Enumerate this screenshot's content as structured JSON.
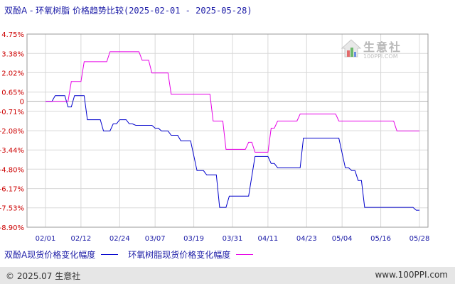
{
  "title": {
    "main": "双酚A - 环氧树脂 价格趋势比较",
    "range": "(2025-02-01 - 2025-05-28)"
  },
  "watermark": {
    "text": "生意社",
    "sub": "100PPI.COM"
  },
  "legend": {
    "series1": "双酚A现货价格变化幅度",
    "series2": "环氧树脂现货价格变化幅度"
  },
  "footer": {
    "copyright": "© 2025.07 生意社",
    "url": "www.100PPI.com"
  },
  "colors": {
    "series1": "#0000cc",
    "series2": "#e600e6",
    "axis": "#9a9a9a",
    "grid": "#d8d8d8",
    "tick_label_y": "#cc0000",
    "tick_label_x": "#1a1aa6"
  },
  "chart_data": {
    "type": "line",
    "title": "双酚A - 环氧树脂 价格趋势比较(2025-02-01 - 2025-05-28)",
    "xlabel": "",
    "ylabel": "",
    "x_tick_labels": [
      "02/01",
      "02/12",
      "02/24",
      "03/07",
      "03/19",
      "03/31",
      "04/11",
      "04/23",
      "05/04",
      "05/16",
      "05/28"
    ],
    "x_tick_dates": [
      "2025-02-01",
      "2025-02-12",
      "2025-02-24",
      "2025-03-07",
      "2025-03-19",
      "2025-03-31",
      "2025-04-11",
      "2025-04-23",
      "2025-05-04",
      "2025-05-16",
      "2025-05-28"
    ],
    "y_tick_labels": [
      "4.75%",
      "3.38%",
      "2.02%",
      "0.65%",
      "0",
      "-0.71%",
      "-2.08%",
      "-3.44%",
      "-4.80%",
      "-6.17%",
      "-7.53%",
      "-8.90%"
    ],
    "y_tick_values": [
      4.75,
      3.38,
      2.02,
      0.65,
      0,
      -0.71,
      -2.08,
      -3.44,
      -4.8,
      -6.17,
      -7.53,
      -8.9
    ],
    "ylim": [
      -8.9,
      4.75
    ],
    "xlim": [
      "2025-02-01",
      "2025-05-28"
    ],
    "grid": true,
    "legend_position": "bottom",
    "series": [
      {
        "name": "双酚A现货价格变化幅度",
        "color": "#0000cc",
        "points": [
          [
            "2025-02-01",
            0.0
          ],
          [
            "2025-02-03",
            0.0
          ],
          [
            "2025-02-04",
            0.4
          ],
          [
            "2025-02-07",
            0.4
          ],
          [
            "2025-02-08",
            -0.4
          ],
          [
            "2025-02-09",
            -0.4
          ],
          [
            "2025-02-10",
            0.4
          ],
          [
            "2025-02-13",
            0.4
          ],
          [
            "2025-02-14",
            -1.3
          ],
          [
            "2025-02-18",
            -1.3
          ],
          [
            "2025-02-19",
            -2.1
          ],
          [
            "2025-02-21",
            -2.1
          ],
          [
            "2025-02-22",
            -1.6
          ],
          [
            "2025-02-23",
            -1.6
          ],
          [
            "2025-02-24",
            -1.3
          ],
          [
            "2025-02-26",
            -1.3
          ],
          [
            "2025-02-27",
            -1.6
          ],
          [
            "2025-02-28",
            -1.6
          ],
          [
            "2025-03-01",
            -1.7
          ],
          [
            "2025-03-06",
            -1.7
          ],
          [
            "2025-03-07",
            -1.9
          ],
          [
            "2025-03-08",
            -1.9
          ],
          [
            "2025-03-09",
            -2.1
          ],
          [
            "2025-03-11",
            -2.1
          ],
          [
            "2025-03-12",
            -2.4
          ],
          [
            "2025-03-14",
            -2.4
          ],
          [
            "2025-03-15",
            -2.8
          ],
          [
            "2025-03-18",
            -2.8
          ],
          [
            "2025-03-20",
            -4.9
          ],
          [
            "2025-03-22",
            -4.9
          ],
          [
            "2025-03-23",
            -5.2
          ],
          [
            "2025-03-26",
            -5.2
          ],
          [
            "2025-03-27",
            -7.5
          ],
          [
            "2025-03-29",
            -7.5
          ],
          [
            "2025-03-30",
            -6.7
          ],
          [
            "2025-04-05",
            -6.7
          ],
          [
            "2025-04-07",
            -3.9
          ],
          [
            "2025-04-11",
            -3.9
          ],
          [
            "2025-04-12",
            -4.4
          ],
          [
            "2025-04-13",
            -4.4
          ],
          [
            "2025-04-14",
            -4.7
          ],
          [
            "2025-04-21",
            -4.7
          ],
          [
            "2025-04-22",
            -2.6
          ],
          [
            "2025-05-03",
            -2.6
          ],
          [
            "2025-05-05",
            -4.7
          ],
          [
            "2025-05-06",
            -4.7
          ],
          [
            "2025-05-07",
            -4.9
          ],
          [
            "2025-05-08",
            -4.9
          ],
          [
            "2025-05-09",
            -5.6
          ],
          [
            "2025-05-10",
            -5.6
          ],
          [
            "2025-05-11",
            -7.5
          ],
          [
            "2025-05-26",
            -7.5
          ],
          [
            "2025-05-27",
            -7.7
          ],
          [
            "2025-05-28",
            -7.7
          ]
        ]
      },
      {
        "name": "环氧树脂现货价格变化幅度",
        "color": "#e600e6",
        "points": [
          [
            "2025-02-01",
            0.0
          ],
          [
            "2025-02-08",
            0.0
          ],
          [
            "2025-02-09",
            1.4
          ],
          [
            "2025-02-12",
            1.4
          ],
          [
            "2025-02-13",
            2.8
          ],
          [
            "2025-02-20",
            2.8
          ],
          [
            "2025-02-21",
            3.5
          ],
          [
            "2025-03-02",
            3.5
          ],
          [
            "2025-03-03",
            2.9
          ],
          [
            "2025-03-05",
            2.9
          ],
          [
            "2025-03-06",
            2.0
          ],
          [
            "2025-03-11",
            2.0
          ],
          [
            "2025-03-12",
            0.5
          ],
          [
            "2025-03-24",
            0.5
          ],
          [
            "2025-03-25",
            -1.4
          ],
          [
            "2025-03-28",
            -1.4
          ],
          [
            "2025-03-29",
            -3.4
          ],
          [
            "2025-04-04",
            -3.4
          ],
          [
            "2025-04-05",
            -2.9
          ],
          [
            "2025-04-06",
            -2.9
          ],
          [
            "2025-04-07",
            -3.6
          ],
          [
            "2025-04-11",
            -3.6
          ],
          [
            "2025-04-12",
            -1.9
          ],
          [
            "2025-04-13",
            -1.9
          ],
          [
            "2025-04-14",
            -1.4
          ],
          [
            "2025-04-20",
            -1.4
          ],
          [
            "2025-04-21",
            -0.9
          ],
          [
            "2025-05-02",
            -0.9
          ],
          [
            "2025-05-03",
            -1.4
          ],
          [
            "2025-05-20",
            -1.4
          ],
          [
            "2025-05-21",
            -2.1
          ],
          [
            "2025-05-28",
            -2.1
          ]
        ]
      }
    ]
  }
}
